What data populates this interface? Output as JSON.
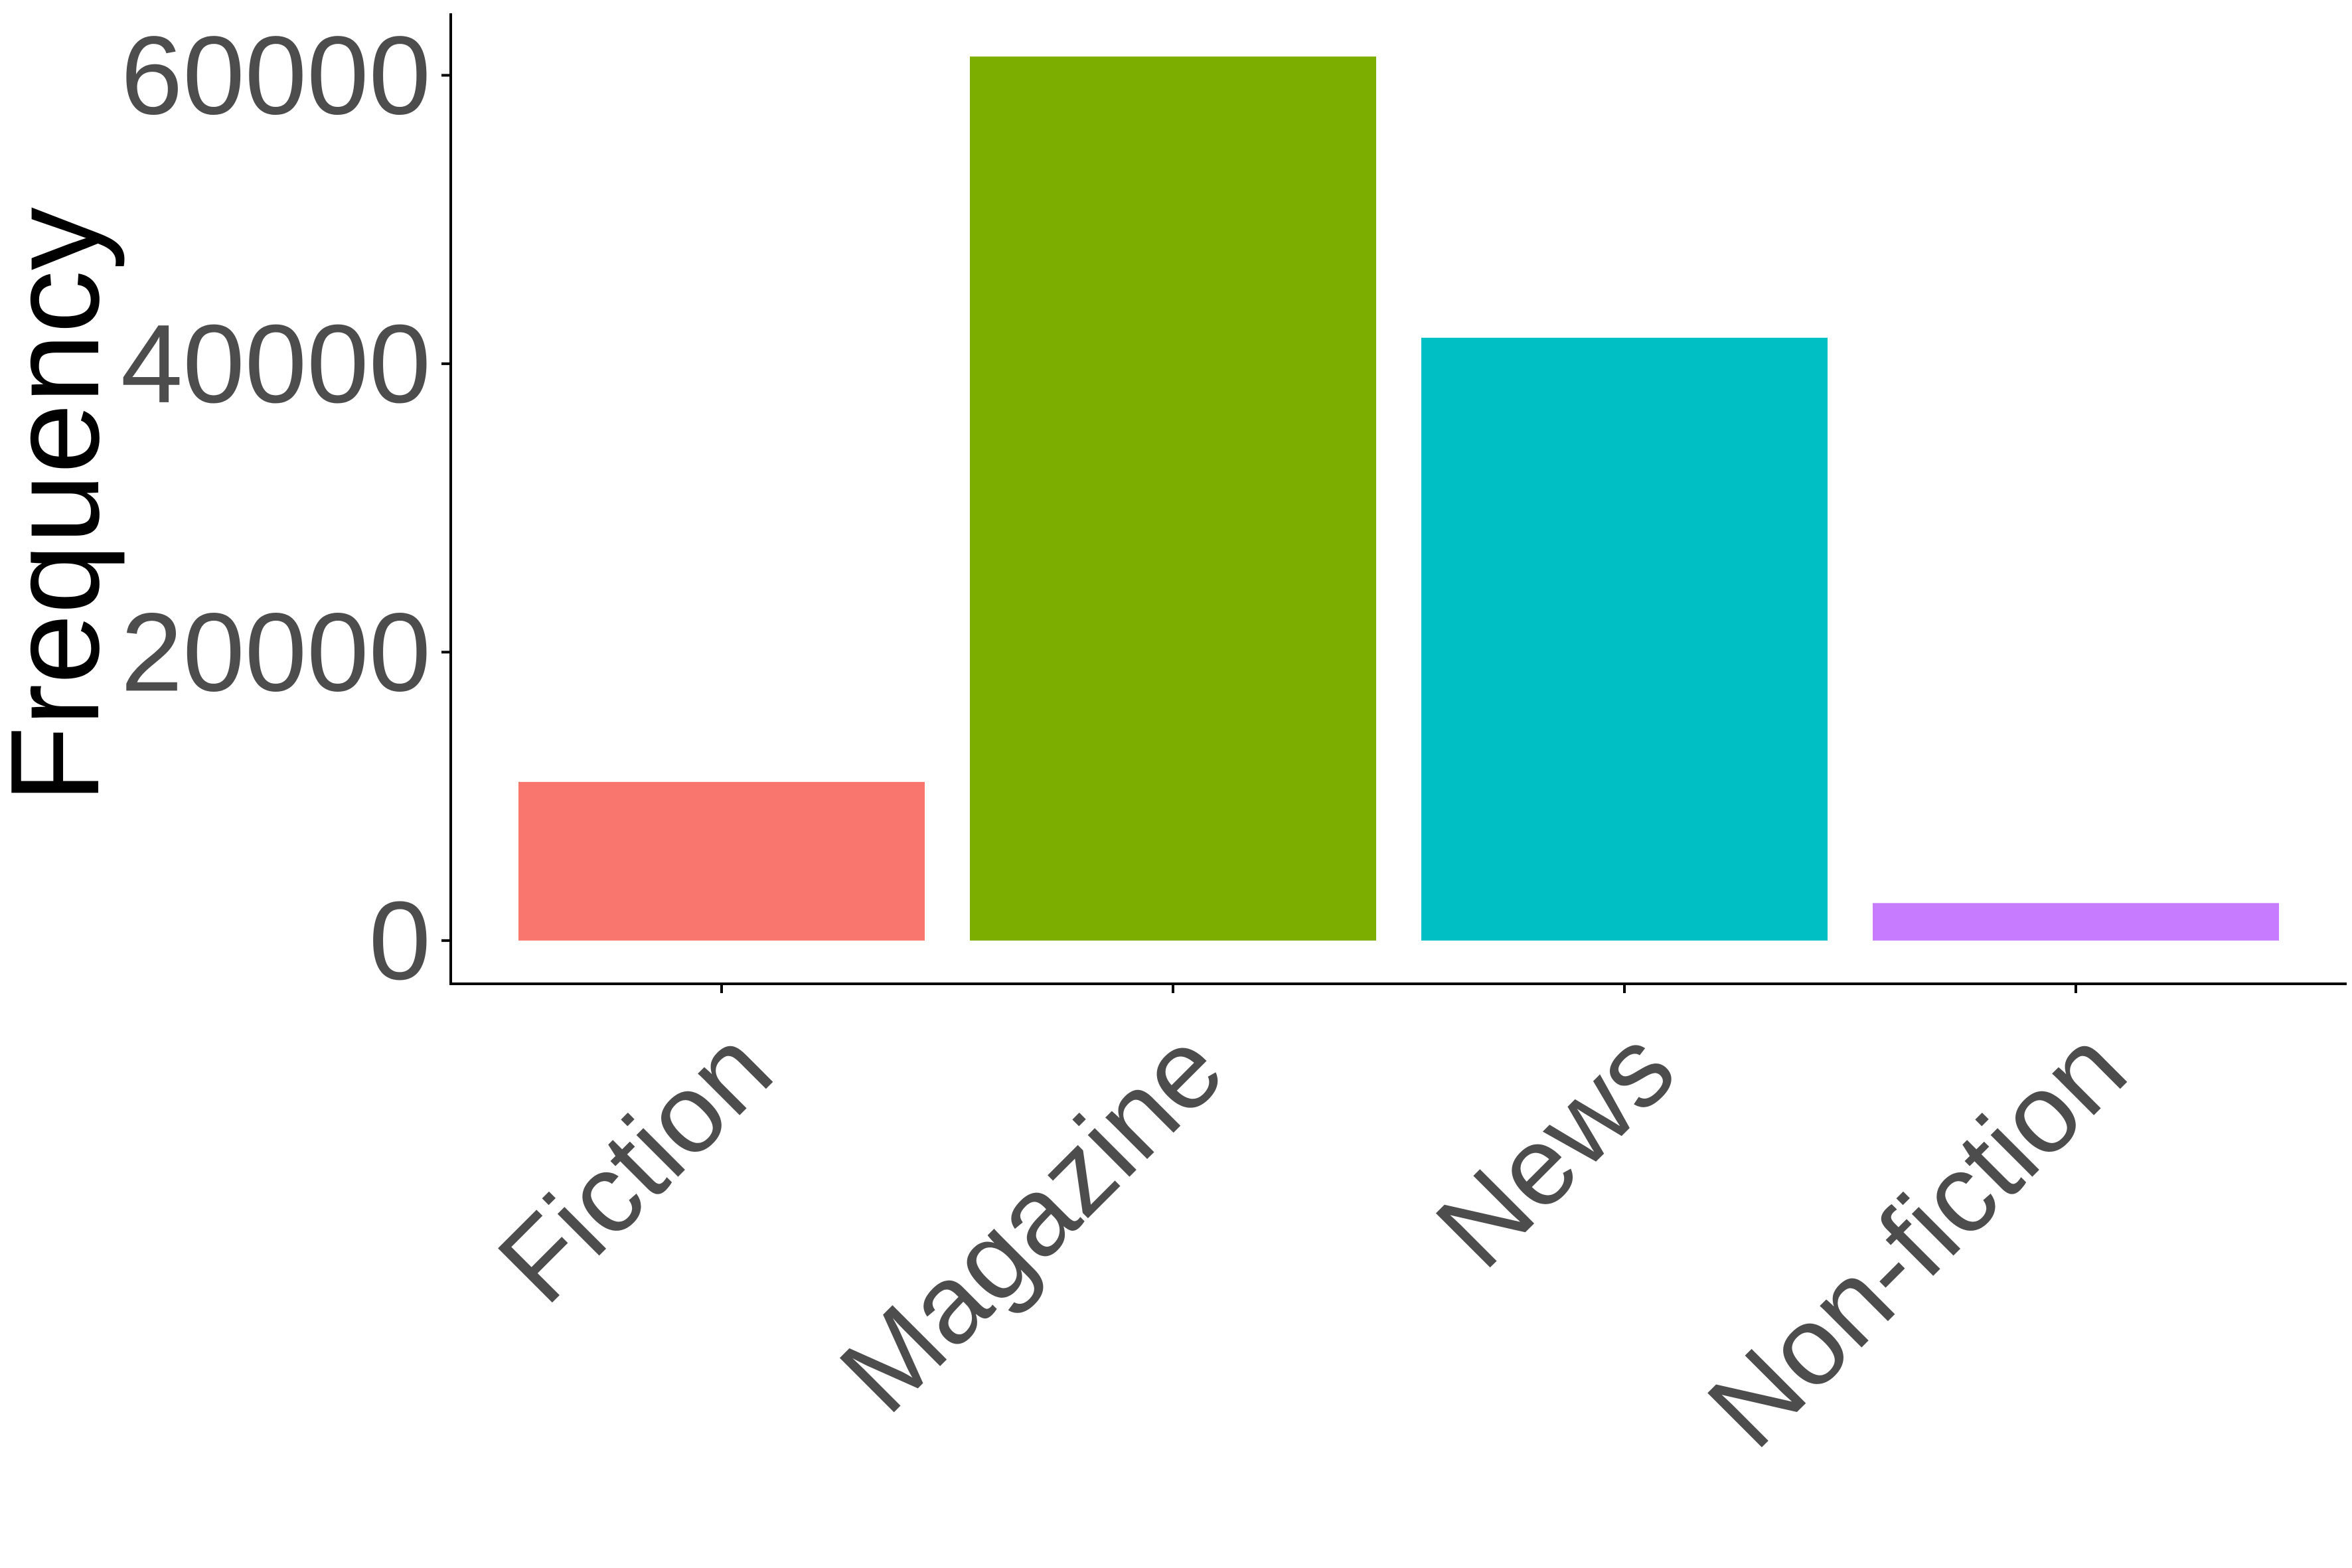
{
  "chart_data": {
    "type": "bar",
    "title": "",
    "xlabel": "",
    "ylabel": "Frequency",
    "categories": [
      "Fiction",
      "Magazine",
      "News",
      "Non-fiction"
    ],
    "values": [
      11000,
      61300,
      41800,
      2600
    ],
    "colors": [
      "#F8766D",
      "#7CAE00",
      "#00BFC4",
      "#C77CFF"
    ],
    "ylim": [
      -3000,
      64300
    ],
    "yticks": [
      0,
      20000,
      40000,
      60000
    ],
    "ytick_labels": [
      "0",
      "20000",
      "40000",
      "60000"
    ],
    "grid": false,
    "legend": "none",
    "axis_color": "#000000",
    "tick_label_color": "#4d4d4d"
  }
}
